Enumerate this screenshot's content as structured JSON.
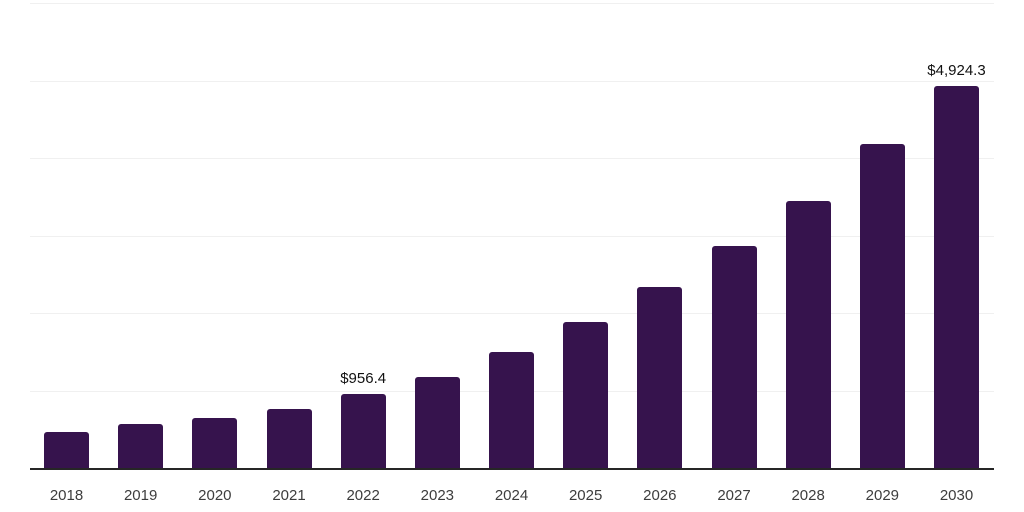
{
  "chart_data": {
    "type": "bar",
    "title": "",
    "xlabel": "",
    "ylabel": "",
    "categories": [
      "2018",
      "2019",
      "2020",
      "2021",
      "2022",
      "2023",
      "2024",
      "2025",
      "2026",
      "2027",
      "2028",
      "2029",
      "2030"
    ],
    "values": [
      460,
      570,
      645,
      760,
      956.4,
      1180,
      1495,
      1890,
      2335,
      2870,
      3450,
      4175,
      4924.3
    ],
    "annotations": [
      {
        "index": 4,
        "text": "$956.4"
      },
      {
        "index": 12,
        "text": "$4,924.3"
      }
    ],
    "ylim": [
      0,
      6000
    ],
    "gridline_step": 1000,
    "grid": "horizontal",
    "legend": "none",
    "axis_tick_labels_y": "none"
  },
  "style": {
    "bar_color": "#36134d",
    "axis_line_color": "#262626",
    "gridline_color": "#f0f0f0",
    "year_label_color": "#3d3d3d",
    "value_label_color": "#111111",
    "background_color": "#ffffff"
  }
}
